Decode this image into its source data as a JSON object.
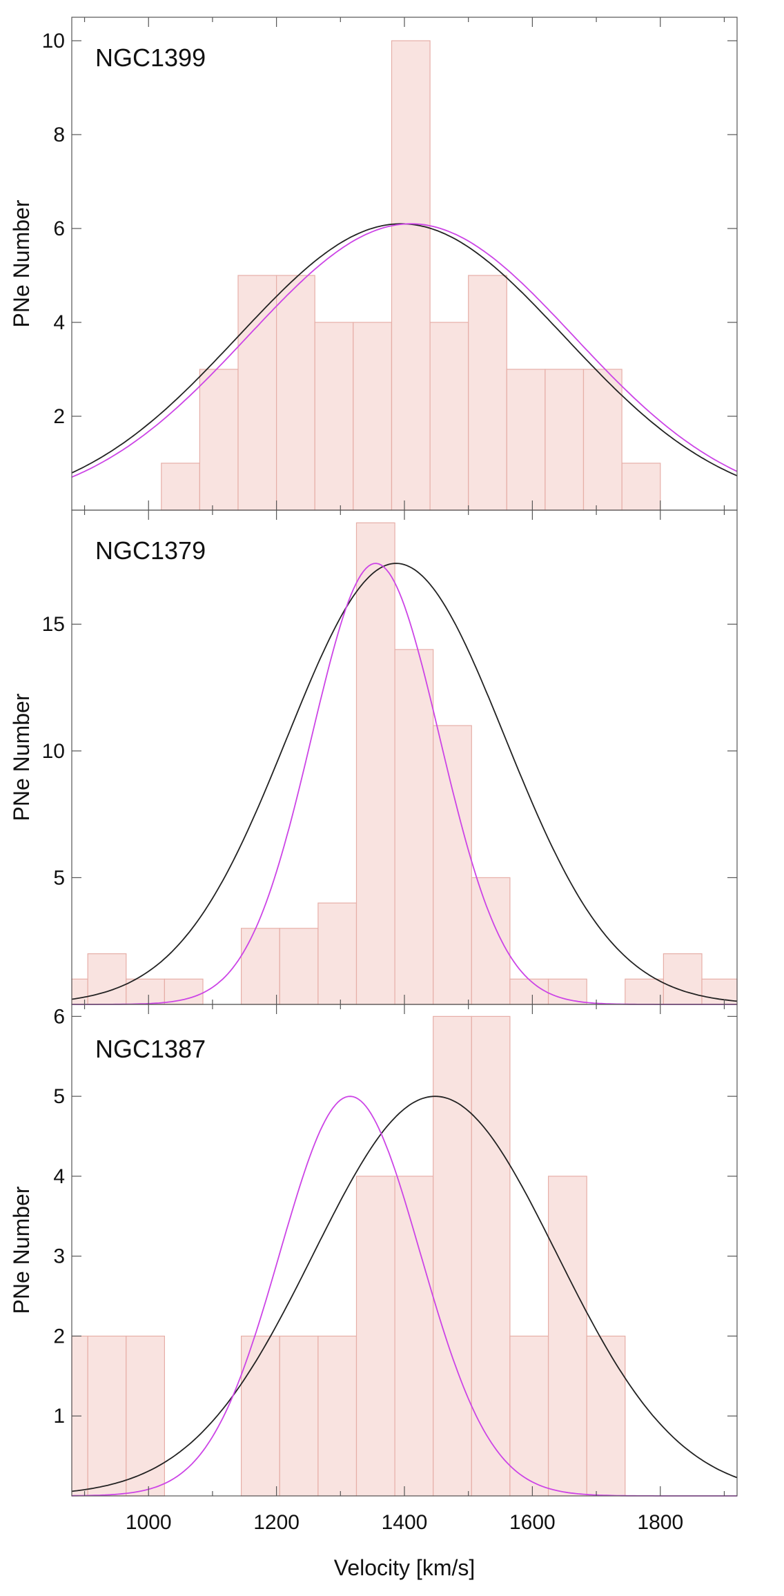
{
  "chart_data": {
    "type": "bar",
    "xlabel": "Velocity [km/s]",
    "xlim": [
      880,
      1920
    ],
    "xticks": [
      1000,
      1200,
      1400,
      1600,
      1800
    ],
    "panels": [
      {
        "name": "NGC1399",
        "title": "NGC1399",
        "ylabel": "PNe Number",
        "ylim": [
          0,
          10.5
        ],
        "yticks": [
          2,
          4,
          6,
          8,
          10
        ],
        "bin_edges": [
          1020,
          1080,
          1140,
          1200,
          1260,
          1320,
          1380,
          1440,
          1500,
          1560,
          1620,
          1680,
          1740,
          1800
        ],
        "counts": [
          1,
          3,
          5,
          5,
          4,
          4,
          10,
          4,
          5,
          3,
          3,
          3,
          1
        ],
        "curves": [
          {
            "name": "gaussian-fit-black",
            "color": "#222222",
            "amplitude": 6.1,
            "mean": 1395,
            "sigma": 255
          },
          {
            "name": "gaussian-fit-magenta",
            "color": "#cc44e6",
            "amplitude": 6.1,
            "mean": 1410,
            "sigma": 255
          }
        ]
      },
      {
        "name": "NGC1379",
        "title": "NGC1379",
        "ylabel": "PNe Number",
        "ylim": [
          0,
          19.5
        ],
        "yticks": [
          5,
          10,
          15
        ],
        "bin_edges": [
          880,
          905,
          965,
          1025,
          1085,
          1145,
          1205,
          1265,
          1325,
          1385,
          1445,
          1505,
          1565,
          1625,
          1685,
          1745,
          1805,
          1865,
          1925
        ],
        "counts": [
          1,
          2,
          1,
          1,
          0,
          3,
          3,
          4,
          19,
          14,
          11,
          5,
          1,
          1,
          0,
          1,
          2,
          1
        ],
        "curves": [
          {
            "name": "gaussian-fit-black",
            "color": "#222222",
            "amplitude": 17.4,
            "mean": 1387,
            "sigma": 170
          },
          {
            "name": "gaussian-fit-magenta",
            "color": "#cc44e6",
            "amplitude": 17.4,
            "mean": 1355,
            "sigma": 100
          }
        ]
      },
      {
        "name": "NGC1387",
        "title": "NGC1387",
        "ylabel": "PNe Number",
        "ylim": [
          0,
          6.15
        ],
        "yticks": [
          1,
          2,
          3,
          4,
          5,
          6
        ],
        "bin_edges": [
          880,
          905,
          965,
          1025,
          1085,
          1145,
          1205,
          1265,
          1325,
          1385,
          1445,
          1505,
          1565,
          1625,
          1685,
          1745
        ],
        "counts": [
          2,
          2,
          2,
          0,
          0,
          2,
          2,
          2,
          4,
          4,
          6,
          6,
          2,
          4,
          2
        ],
        "curves": [
          {
            "name": "gaussian-fit-black",
            "color": "#222222",
            "amplitude": 5.0,
            "mean": 1448,
            "sigma": 190
          },
          {
            "name": "gaussian-fit-magenta",
            "color": "#cc44e6",
            "amplitude": 5.0,
            "mean": 1315,
            "sigma": 110
          }
        ]
      }
    ]
  }
}
